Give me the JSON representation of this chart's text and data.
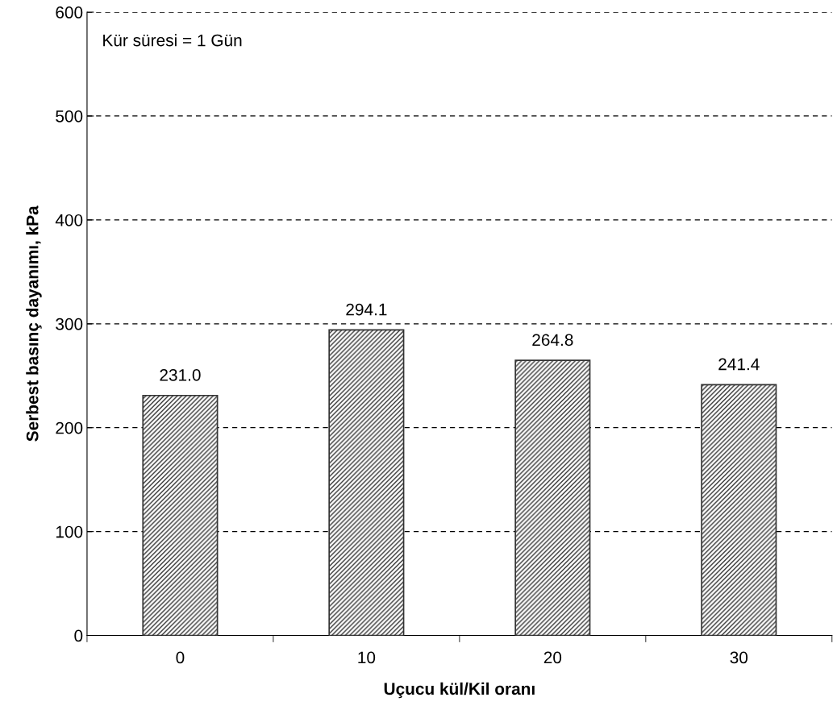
{
  "chart_data": {
    "type": "bar",
    "xlabel": "Uçucu kül/Kil oranı",
    "ylabel": "Serbest basınç dayanımı, kPa",
    "categories": [
      "0",
      "10",
      "20",
      "30"
    ],
    "values": [
      231.0,
      294.1,
      264.8,
      241.4
    ],
    "color": "#333333",
    "value_labels": [
      "231.0",
      "294.1",
      "264.8",
      "241.4"
    ],
    "ylim": [
      0,
      600
    ],
    "yticks": [
      0,
      100,
      200,
      300,
      400,
      500,
      600
    ],
    "grid": "y",
    "annotations": [
      "Kür süresi = 1 Gün"
    ]
  }
}
